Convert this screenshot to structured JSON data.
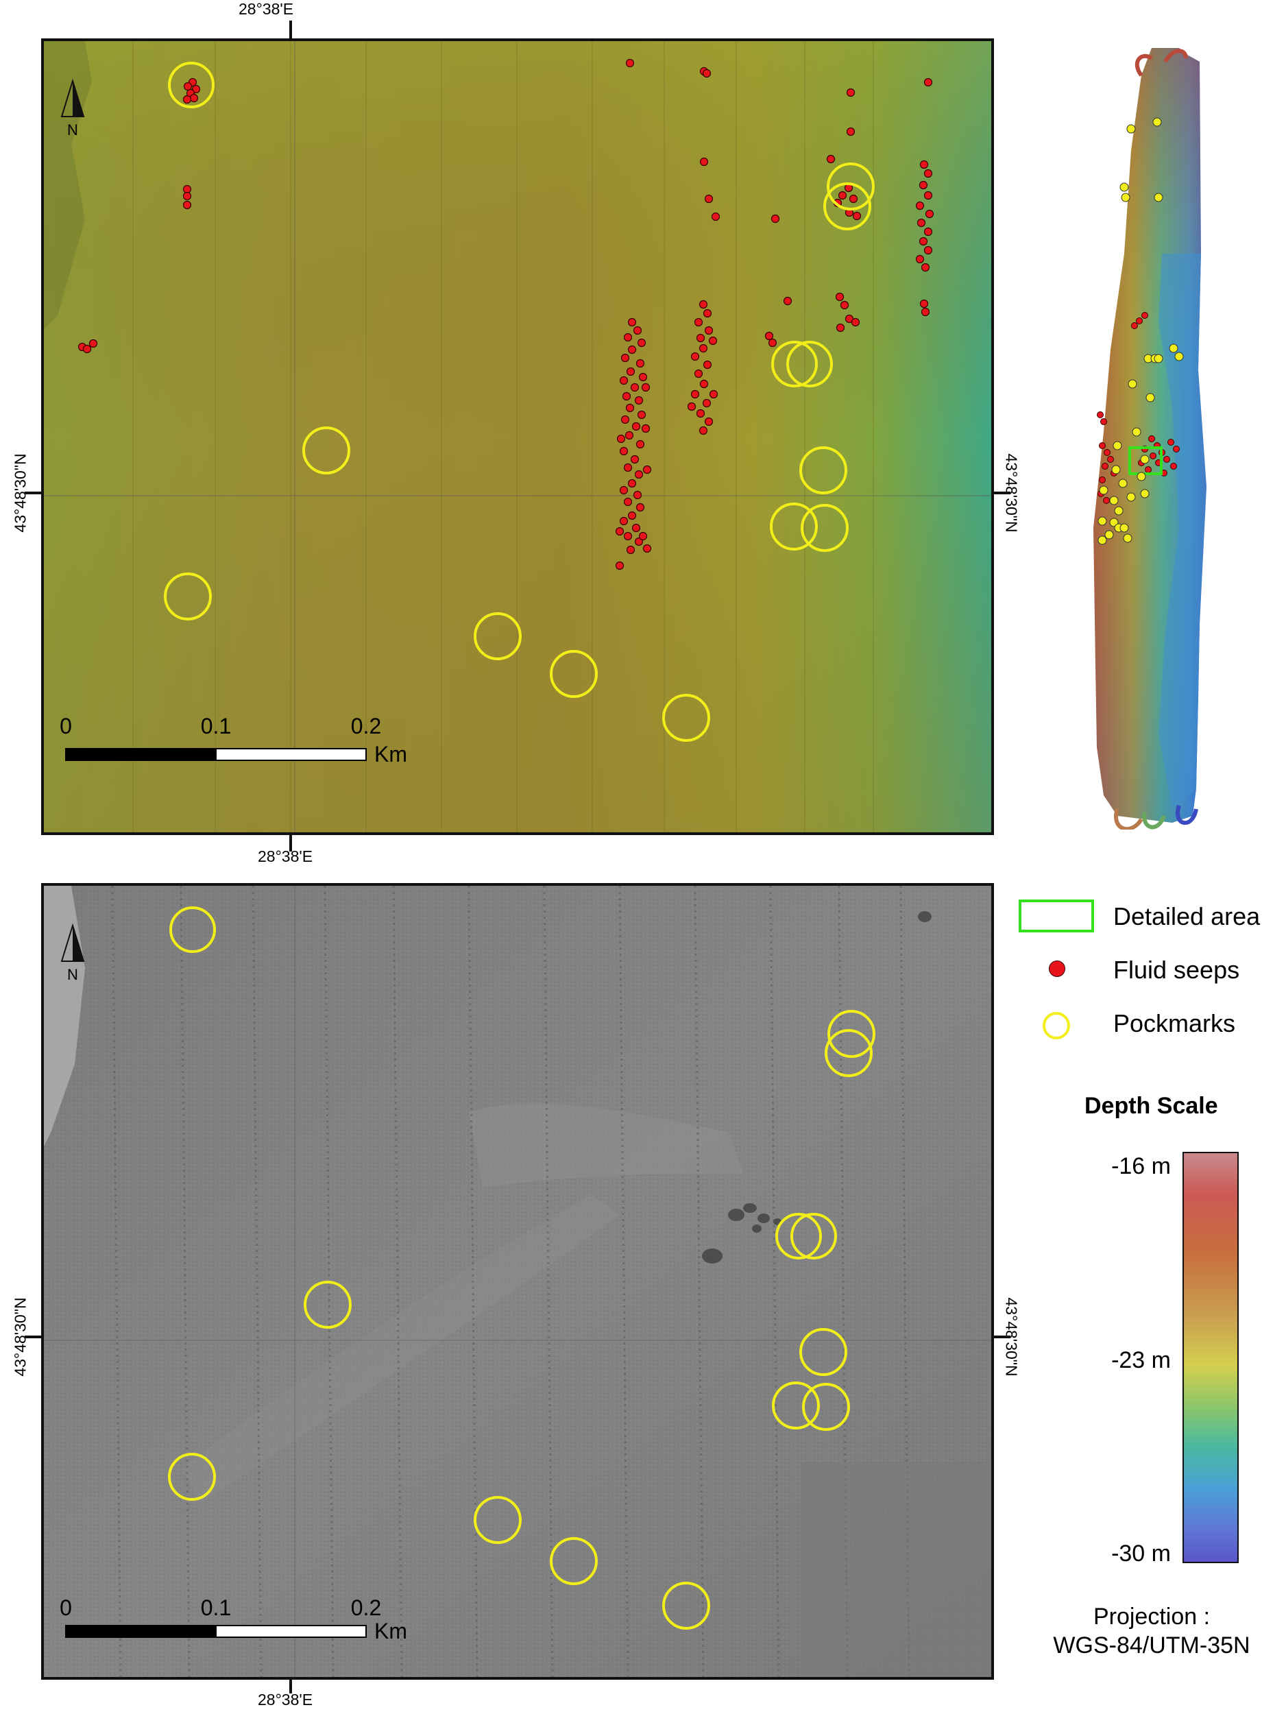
{
  "maps": {
    "top": {
      "lon_top": "28°38'E",
      "lon_bottom": "28°38'E",
      "lat_left": "43°48'30\"N",
      "lat_right": "43°48'30\"N",
      "north_label": "N",
      "scale": {
        "ticks": [
          "0",
          "0.1",
          "0.2"
        ],
        "unit": "Km"
      }
    },
    "bottom": {
      "lon_bottom": "28°38'E",
      "lat_left": "43°48'30\"N",
      "lat_right": "43°48'30\"N",
      "north_label": "N",
      "scale": {
        "ticks": [
          "0",
          "0.1",
          "0.2"
        ],
        "unit": "Km"
      }
    }
  },
  "legend": {
    "detailed_area": "Detailed area",
    "fluid_seeps": "Fluid seeps",
    "pockmarks": "Pockmarks",
    "depth_title": "Depth Scale",
    "depth_max": "-16  m",
    "depth_mid": "-23  m",
    "depth_min": "-30  m",
    "projection_line1": "Projection :",
    "projection_line2": "WGS-84/UTM-35N"
  },
  "colors": {
    "seep": "#e8141c",
    "pockmark": "#f2ee1a",
    "detailed_area": "#35e01c",
    "frame": "#111111"
  }
}
